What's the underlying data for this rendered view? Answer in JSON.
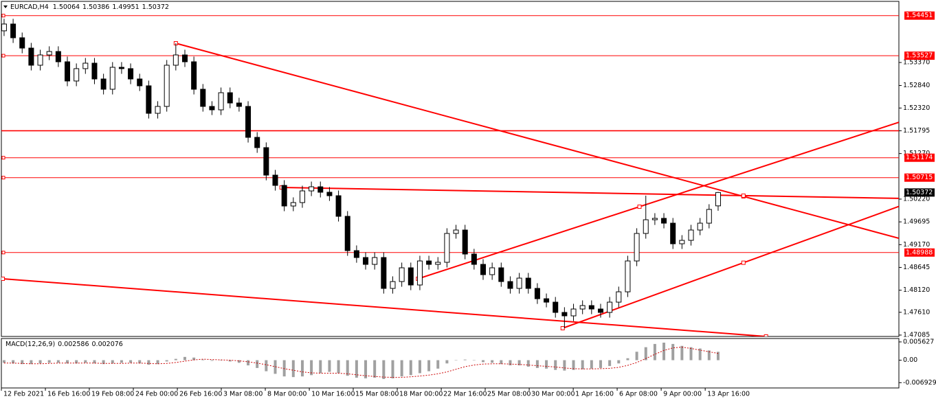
{
  "chart_data": [
    {
      "type": "candlestick",
      "title": "EURCAD,H4",
      "color": "#000000",
      "level_color": "#ff0000",
      "open": [
        1.541,
        1.54257,
        1.5394,
        1.53702,
        1.53307,
        1.53544,
        1.53623,
        1.53386,
        1.52943,
        1.53228,
        1.53354,
        1.5299,
        1.52753,
        1.53259,
        1.53228,
        1.5299,
        1.52832,
        1.52198,
        1.52357,
        1.53307,
        1.53544,
        1.53386,
        1.52753,
        1.52357,
        1.52278,
        1.52673,
        1.52436,
        1.52357,
        1.51644,
        1.51407,
        1.50773,
        1.50536,
        1.50061,
        1.5014,
        1.50409,
        1.50504,
        1.50378,
        1.50298,
        1.49823,
        1.49032,
        1.48873,
        1.48715,
        1.48873,
        1.48161,
        1.48319,
        1.48636,
        1.4824,
        1.48794,
        1.48715,
        1.48763,
        1.49428,
        1.49507,
        1.48953,
        1.48715,
        1.48478,
        1.48636,
        1.48319,
        1.48161,
        1.48398,
        1.48161,
        1.47923,
        1.47844,
        1.47607,
        1.47528,
        1.47686,
        1.47765,
        1.47686,
        1.47607,
        1.47844,
        1.48082,
        1.48794,
        1.49428,
        1.49744,
        1.49776,
        1.49665,
        1.4919,
        1.49269,
        1.49507,
        1.49665,
        1.50064
      ],
      "high": [
        1.54377,
        1.54377,
        1.5406,
        1.53822,
        1.53664,
        1.53743,
        1.53743,
        1.53506,
        1.53348,
        1.53474,
        1.53474,
        1.5311,
        1.53379,
        1.53379,
        1.53348,
        1.5311,
        1.52952,
        1.52477,
        1.53427,
        1.53813,
        1.53664,
        1.53506,
        1.52873,
        1.52477,
        1.52793,
        1.52793,
        1.52556,
        1.52477,
        1.51764,
        1.51527,
        1.50893,
        1.50656,
        1.5026,
        1.50529,
        1.50624,
        1.50624,
        1.50498,
        1.50418,
        1.49943,
        1.49152,
        1.48993,
        1.48993,
        1.48993,
        1.48439,
        1.48756,
        1.48756,
        1.48914,
        1.48914,
        1.48883,
        1.49548,
        1.49627,
        1.49627,
        1.49073,
        1.48835,
        1.48756,
        1.48756,
        1.48439,
        1.48518,
        1.48518,
        1.48281,
        1.48043,
        1.47964,
        1.47727,
        1.47806,
        1.47885,
        1.47885,
        1.47806,
        1.47964,
        1.48202,
        1.48914,
        1.49548,
        1.503,
        1.49896,
        1.49896,
        1.49785,
        1.49389,
        1.49627,
        1.49785,
        1.50102,
        1.50386
      ],
      "low": [
        1.5398,
        1.5382,
        1.53582,
        1.53187,
        1.53187,
        1.53424,
        1.53266,
        1.52823,
        1.52823,
        1.53108,
        1.5287,
        1.52633,
        1.52633,
        1.53108,
        1.5287,
        1.52712,
        1.52078,
        1.52078,
        1.52237,
        1.53187,
        1.53266,
        1.52633,
        1.52237,
        1.52158,
        1.52158,
        1.52316,
        1.52237,
        1.51524,
        1.51287,
        1.50653,
        1.50416,
        1.49941,
        1.49941,
        1.5002,
        1.50289,
        1.50258,
        1.50178,
        1.49703,
        1.48912,
        1.48753,
        1.48595,
        1.48595,
        1.48041,
        1.48041,
        1.48199,
        1.4812,
        1.4812,
        1.48595,
        1.48595,
        1.48643,
        1.49308,
        1.48833,
        1.48595,
        1.48358,
        1.48358,
        1.48199,
        1.48041,
        1.48041,
        1.48041,
        1.47803,
        1.47724,
        1.47487,
        1.47243,
        1.47408,
        1.47566,
        1.47566,
        1.47487,
        1.47487,
        1.47724,
        1.47962,
        1.48674,
        1.49308,
        1.49624,
        1.49545,
        1.4907,
        1.4907,
        1.49149,
        1.49387,
        1.49545,
        1.49951
      ],
      "close": [
        1.54257,
        1.5394,
        1.53702,
        1.53307,
        1.53544,
        1.53623,
        1.53386,
        1.52943,
        1.53228,
        1.53354,
        1.5299,
        1.52753,
        1.53259,
        1.53228,
        1.5299,
        1.52832,
        1.52198,
        1.52357,
        1.53307,
        1.53544,
        1.53386,
        1.52753,
        1.52357,
        1.52278,
        1.52673,
        1.52436,
        1.52357,
        1.51644,
        1.51407,
        1.50773,
        1.50536,
        1.50061,
        1.5014,
        1.50409,
        1.50504,
        1.50378,
        1.50298,
        1.49823,
        1.49032,
        1.48873,
        1.48715,
        1.48873,
        1.48161,
        1.48319,
        1.48636,
        1.4824,
        1.48794,
        1.48715,
        1.48763,
        1.49428,
        1.49507,
        1.48953,
        1.48715,
        1.48478,
        1.48636,
        1.48319,
        1.48161,
        1.48398,
        1.48161,
        1.47923,
        1.47844,
        1.47607,
        1.47528,
        1.47686,
        1.47765,
        1.47686,
        1.47607,
        1.47844,
        1.48082,
        1.48794,
        1.49428,
        1.49744,
        1.49776,
        1.49665,
        1.4919,
        1.49269,
        1.49507,
        1.49665,
        1.49982,
        1.50372
      ],
      "xlim": [
        -0.3,
        99
      ],
      "ylim": [
        1.47053,
        1.54779
      ],
      "yticks": [
        1.47085,
        {
          "value": 1.4761,
          "label": "1.47610"
        },
        {
          "value": 1.4812,
          "label": "1.48120"
        },
        1.48645,
        {
          "value": 1.4917,
          "label": "1.49170"
        },
        1.49695,
        {
          "value": 1.5022,
          "label": "1.50220"
        },
        {
          "value": 1.5127,
          "label": "1.51270"
        },
        1.51795,
        {
          "value": 1.5232,
          "label": "1.52320"
        },
        {
          "value": 1.5284,
          "label": "1.52840"
        },
        {
          "value": 1.5337,
          "label": "1.53370"
        }
      ],
      "xticks": [
        {
          "value": -0.3,
          "label": "12 Feb 2021"
        },
        {
          "value": 4.57,
          "label": "16 Feb 16:00"
        },
        {
          "value": 9.43,
          "label": "19 Feb 08:00"
        },
        {
          "value": 14.3,
          "label": "24 Feb 00:00"
        },
        {
          "value": 19.17,
          "label": "26 Feb 16:00"
        },
        {
          "value": 24.03,
          "label": "3 Mar 08:00"
        },
        {
          "value": 28.9,
          "label": "8 Mar 00:00"
        },
        {
          "value": 33.77,
          "label": "10 Mar 16:00"
        },
        {
          "value": 38.63,
          "label": "15 Mar 08:00"
        },
        {
          "value": 43.5,
          "label": "18 Mar 00:00"
        },
        {
          "value": 48.37,
          "label": "22 Mar 16:00"
        },
        {
          "value": 53.23,
          "label": "25 Mar 08:00"
        },
        {
          "value": 58.1,
          "label": "30 Mar 00:00"
        },
        {
          "value": 62.97,
          "label": "1 Apr 16:00"
        },
        {
          "value": 67.83,
          "label": "6 Apr 08:00"
        },
        {
          "value": 72.7,
          "label": "9 Apr 00:00"
        },
        {
          "value": 77.57,
          "label": "13 Apr 16:00"
        }
      ],
      "levels": [
        {
          "value": 1.54451,
          "boxed": true
        },
        {
          "value": 1.53527,
          "boxed": true
        },
        {
          "value": 1.51795,
          "boxed": false
        },
        {
          "value": 1.51174,
          "boxed": true
        },
        {
          "value": 1.50715,
          "boxed": true
        },
        {
          "value": 1.48988,
          "boxed": true
        }
      ],
      "trendlines": [
        {
          "points": [
            {
              "x": 19.0,
              "y": 1.53813
            },
            {
              "x": 81.8,
              "y": 1.50283
            }
          ],
          "ray": true
        },
        {
          "points": [
            {
              "x": 45.8,
              "y": 1.48383
            },
            {
              "x": 70.3,
              "y": 1.50045
            }
          ],
          "ray": true
        },
        {
          "points": [
            {
              "x": 61.8,
              "y": 1.47243
            },
            {
              "x": 81.8,
              "y": 1.48753
            }
          ],
          "ray": true
        },
        {
          "points": [
            {
              "x": 30.7,
              "y": 1.50488
            },
            {
              "x": 81.8,
              "y": 1.503
            }
          ],
          "ray": true
        },
        {
          "points": [
            {
              "x": -0.15,
              "y": 1.48383
            },
            {
              "x": 84.3,
              "y": 1.47053
            }
          ],
          "ray": false
        }
      ]
    },
    {
      "type": "macd",
      "title": "MACD(12,26,9)",
      "color": "#a0a0a0",
      "signal_color": "#cc0000",
      "values": [
        -0.0008,
        -0.001,
        -0.0012,
        -0.0012,
        -0.001,
        -0.0008,
        -0.0008,
        -0.001,
        -0.001,
        -0.0008,
        -0.001,
        -0.0012,
        -0.001,
        -0.0008,
        -0.0008,
        -0.001,
        -0.0014,
        -0.0012,
        -0.0004,
        0.0004,
        0.001,
        0.0008,
        0.0002,
        -0.0002,
        0,
        -0.0004,
        -0.0008,
        -0.0016,
        -0.0024,
        -0.0034,
        -0.0042,
        -0.005,
        -0.0052,
        -0.005,
        -0.0046,
        -0.004,
        -0.0036,
        -0.004,
        -0.0048,
        -0.0054,
        -0.0056,
        -0.0054,
        -0.0058,
        -0.0056,
        -0.005,
        -0.0046,
        -0.004,
        -0.0034,
        -0.0026,
        -0.001,
        0,
        0.0002,
        0,
        -0.0006,
        -0.0008,
        -0.0012,
        -0.0016,
        -0.0016,
        -0.002,
        -0.0024,
        -0.0026,
        -0.003,
        -0.0032,
        -0.003,
        -0.0028,
        -0.0026,
        -0.0024,
        -0.0018,
        -0.001,
        0.0006,
        0.0026,
        0.004,
        0.005,
        0.0054,
        0.005,
        0.0044,
        0.004,
        0.0036,
        0.003,
        0.002586
      ],
      "signal": [
        -0.0009,
        -0.0009,
        -0.001,
        -0.0011,
        -0.0011,
        -0.001,
        -0.0009,
        -0.0009,
        -0.0009,
        -0.0009,
        -0.0009,
        -0.001,
        -0.001,
        -0.001,
        -0.0009,
        -0.0009,
        -0.001,
        -0.0011,
        -0.001,
        -0.0007,
        -0.0003,
        0.0001,
        0.0003,
        0.0002,
        0.0001,
        0,
        -0.0002,
        -0.0005,
        -0.0009,
        -0.0014,
        -0.002,
        -0.0026,
        -0.0031,
        -0.0036,
        -0.0039,
        -0.004,
        -0.004,
        -0.004,
        -0.0042,
        -0.0045,
        -0.0048,
        -0.005,
        -0.0052,
        -0.0053,
        -0.0053,
        -0.0051,
        -0.0049,
        -0.0046,
        -0.0042,
        -0.0036,
        -0.0028,
        -0.002,
        -0.0015,
        -0.0012,
        -0.0011,
        -0.0011,
        -0.0012,
        -0.0013,
        -0.0015,
        -0.0017,
        -0.0019,
        -0.0021,
        -0.0024,
        -0.0026,
        -0.0027,
        -0.0027,
        -0.0026,
        -0.0025,
        -0.0022,
        -0.0016,
        -0.0007,
        0.0005,
        0.0018,
        0.003,
        0.0038,
        0.004,
        0.0036,
        0.0031,
        0.0026,
        0.002076
      ],
      "xlim": [
        -0.3,
        99
      ],
      "ylim": [
        -0.00855,
        0.00667
      ],
      "yticks": [
        -0.006929,
        {
          "value": 0,
          "label": "0.00"
        },
        0.005627
      ]
    }
  ]
}
